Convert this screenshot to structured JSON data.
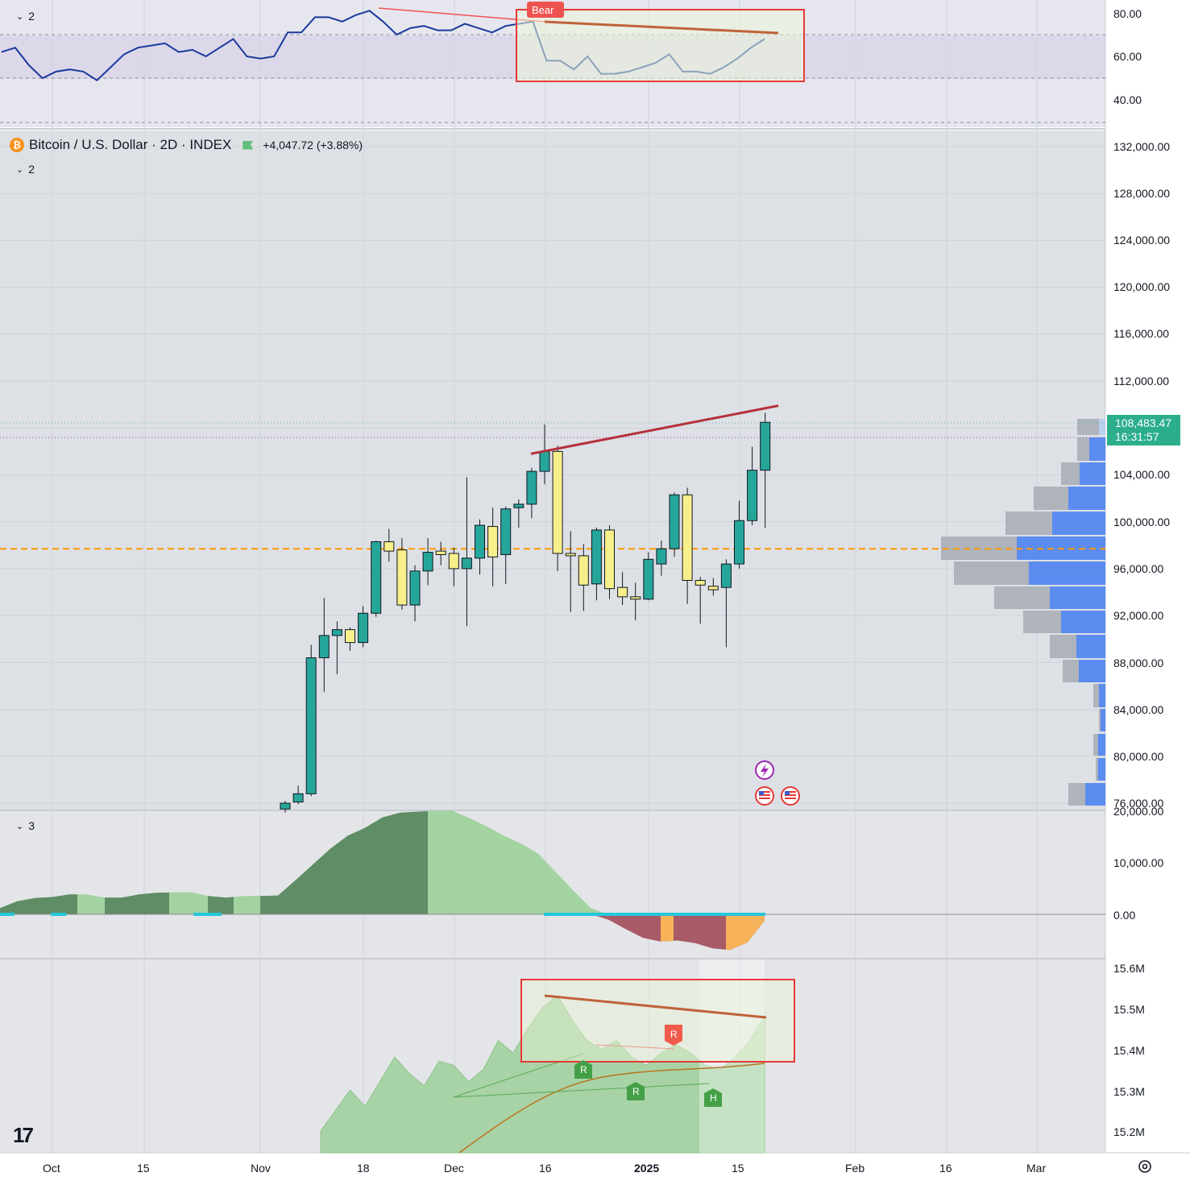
{
  "rsi_pane": {
    "collapse_count": "2",
    "axis_labels": [
      "80.00",
      "60.00",
      "40.00"
    ],
    "badge": "Bear"
  },
  "main_pane": {
    "symbol": "Bitcoin / U.S. Dollar · 2D · INDEX",
    "change": "+4,047.72 (+3.88%)",
    "collapse_count": "2",
    "last_price": "108,483.47",
    "countdown": "16:31:57",
    "axis_labels": [
      "132,000.00",
      "128,000.00",
      "124,000.00",
      "120,000.00",
      "116,000.00",
      "112,000.00",
      "104,000.00",
      "100,000.00",
      "96,000.00",
      "92,000.00",
      "88,000.00",
      "84,000.00",
      "80,000.00",
      "76,000.00"
    ]
  },
  "osc_pane": {
    "collapse_count": "3",
    "axis_labels": [
      "20,000.00",
      "10,000.00",
      "0.00"
    ]
  },
  "vol_pane": {
    "axis_labels": [
      "15.6M",
      "15.5M",
      "15.4M",
      "15.3M",
      "15.2M"
    ],
    "markers": [
      "R",
      "R",
      "R",
      "H"
    ]
  },
  "time_axis": [
    "Oct",
    "15",
    "Nov",
    "18",
    "Dec",
    "16",
    "2025",
    "15",
    "Feb",
    "16",
    "Mar"
  ],
  "colors": {
    "bull": "#26a69a",
    "doji": "#f7ef8a",
    "rsi_line": "#1a3a9c",
    "divergence": "#b5303a",
    "poc": "#ff9800",
    "box": "#e53935"
  },
  "chart_data": {
    "type": "candlestick",
    "symbol": "Bitcoin / U.S. Dollar",
    "interval": "2D",
    "candles": [
      {
        "o": 75500,
        "h": 76200,
        "l": 75200,
        "c": 76000,
        "color": "bull"
      },
      {
        "o": 76100,
        "h": 77500,
        "l": 75900,
        "c": 76800,
        "color": "bull"
      },
      {
        "o": 76800,
        "h": 89500,
        "l": 76600,
        "c": 88400,
        "color": "bull"
      },
      {
        "o": 88400,
        "h": 93500,
        "l": 85500,
        "c": 90300,
        "color": "bull"
      },
      {
        "o": 90300,
        "h": 91500,
        "l": 87000,
        "c": 90800,
        "color": "bull"
      },
      {
        "o": 90800,
        "h": 91000,
        "l": 89000,
        "c": 89700,
        "color": "doji"
      },
      {
        "o": 89700,
        "h": 92800,
        "l": 89300,
        "c": 92200,
        "color": "bull"
      },
      {
        "o": 92200,
        "h": 98400,
        "l": 91900,
        "c": 98300,
        "color": "bull"
      },
      {
        "o": 98300,
        "h": 99400,
        "l": 96600,
        "c": 97500,
        "color": "doji"
      },
      {
        "o": 97600,
        "h": 98600,
        "l": 92500,
        "c": 92900,
        "color": "doji"
      },
      {
        "o": 92900,
        "h": 96300,
        "l": 91500,
        "c": 95800,
        "color": "bull"
      },
      {
        "o": 95800,
        "h": 98600,
        "l": 94600,
        "c": 97400,
        "color": "bull"
      },
      {
        "o": 97500,
        "h": 98300,
        "l": 96300,
        "c": 97200,
        "color": "doji"
      },
      {
        "o": 97300,
        "h": 97800,
        "l": 94500,
        "c": 96000,
        "color": "doji"
      },
      {
        "o": 96000,
        "h": 103800,
        "l": 91100,
        "c": 96900,
        "color": "bull"
      },
      {
        "o": 96900,
        "h": 100200,
        "l": 95500,
        "c": 99700,
        "color": "bull"
      },
      {
        "o": 99600,
        "h": 101200,
        "l": 94500,
        "c": 97000,
        "color": "doji"
      },
      {
        "o": 97200,
        "h": 101300,
        "l": 94700,
        "c": 101100,
        "color": "bull"
      },
      {
        "o": 101200,
        "h": 101900,
        "l": 99500,
        "c": 101500,
        "color": "bull"
      },
      {
        "o": 101500,
        "h": 104600,
        "l": 100300,
        "c": 104300,
        "color": "bull"
      },
      {
        "o": 104300,
        "h": 108300,
        "l": 103200,
        "c": 106000,
        "color": "bull"
      },
      {
        "o": 106000,
        "h": 106500,
        "l": 95800,
        "c": 97300,
        "color": "doji"
      },
      {
        "o": 97300,
        "h": 99200,
        "l": 92300,
        "c": 97100,
        "color": "doji"
      },
      {
        "o": 97100,
        "h": 98100,
        "l": 92400,
        "c": 94600,
        "color": "doji"
      },
      {
        "o": 94700,
        "h": 99500,
        "l": 93300,
        "c": 99300,
        "color": "bull"
      },
      {
        "o": 99300,
        "h": 99700,
        "l": 93400,
        "c": 94300,
        "color": "doji"
      },
      {
        "o": 94400,
        "h": 95700,
        "l": 92900,
        "c": 93600,
        "color": "doji"
      },
      {
        "o": 93600,
        "h": 94800,
        "l": 91600,
        "c": 93400,
        "color": "doji"
      },
      {
        "o": 93400,
        "h": 97400,
        "l": 93300,
        "c": 96800,
        "color": "bull"
      },
      {
        "o": 96400,
        "h": 98400,
        "l": 95400,
        "c": 97700,
        "color": "bull"
      },
      {
        "o": 97700,
        "h": 102500,
        "l": 97000,
        "c": 102300,
        "color": "bull"
      },
      {
        "o": 102300,
        "h": 102900,
        "l": 93000,
        "c": 95000,
        "color": "doji"
      },
      {
        "o": 95000,
        "h": 95300,
        "l": 91300,
        "c": 94600,
        "color": "doji"
      },
      {
        "o": 94500,
        "h": 95200,
        "l": 93700,
        "c": 94200,
        "color": "doji"
      },
      {
        "o": 94400,
        "h": 96800,
        "l": 89300,
        "c": 96400,
        "color": "bull"
      },
      {
        "o": 96400,
        "h": 101800,
        "l": 96000,
        "c": 100100,
        "color": "bull"
      },
      {
        "o": 100100,
        "h": 106400,
        "l": 99700,
        "c": 104400,
        "color": "bull"
      },
      {
        "o": 104400,
        "h": 109300,
        "l": 99500,
        "c": 108483.47,
        "color": "bull"
      }
    ],
    "divergence_line": [
      105800,
      109900
    ],
    "poc_level": 97700,
    "y_range": [
      76000,
      134000
    ],
    "x_labels": [
      "Oct",
      "15",
      "Nov",
      "18",
      "Dec",
      "16",
      "2025",
      "15",
      "Feb",
      "16",
      "Mar"
    ],
    "rsi": [
      62,
      64,
      56,
      50,
      53,
      54,
      53,
      49,
      55,
      61,
      64,
      65,
      66,
      62,
      63,
      60,
      64,
      68,
      60,
      59,
      60,
      71,
      71,
      78,
      78,
      76,
      79,
      81,
      76,
      70,
      73,
      74,
      72,
      72,
      75,
      73,
      71,
      74,
      75,
      76,
      58,
      58,
      54,
      60,
      52,
      52,
      53,
      55,
      57,
      61,
      53,
      53,
      52,
      55,
      59,
      64,
      68
    ],
    "oscillator": [
      1200,
      2500,
      3100,
      3300,
      3800,
      3800,
      3200,
      3200,
      3800,
      4100,
      4200,
      4200,
      3500,
      3200,
      3500,
      3500,
      3600,
      6500,
      9500,
      12500,
      15000,
      16500,
      18500,
      19400,
      19600,
      19800,
      19800,
      18400,
      16800,
      15000,
      13500,
      11500,
      8000,
      4500,
      1200,
      -1000,
      -2800,
      -4500,
      -5200,
      -5000,
      -5500,
      -6500,
      -6800,
      -5400,
      -1200
    ],
    "volume_line": [
      15.2,
      15.25,
      15.3,
      15.26,
      15.32,
      15.38,
      15.34,
      15.31,
      15.37,
      15.36,
      15.32,
      15.35,
      15.42,
      15.39,
      15.45,
      15.5,
      15.53,
      15.47,
      15.42,
      15.4,
      15.42,
      15.38,
      15.36,
      15.39,
      15.41,
      15.39,
      15.36,
      15.35,
      15.38,
      15.42,
      15.48
    ]
  }
}
